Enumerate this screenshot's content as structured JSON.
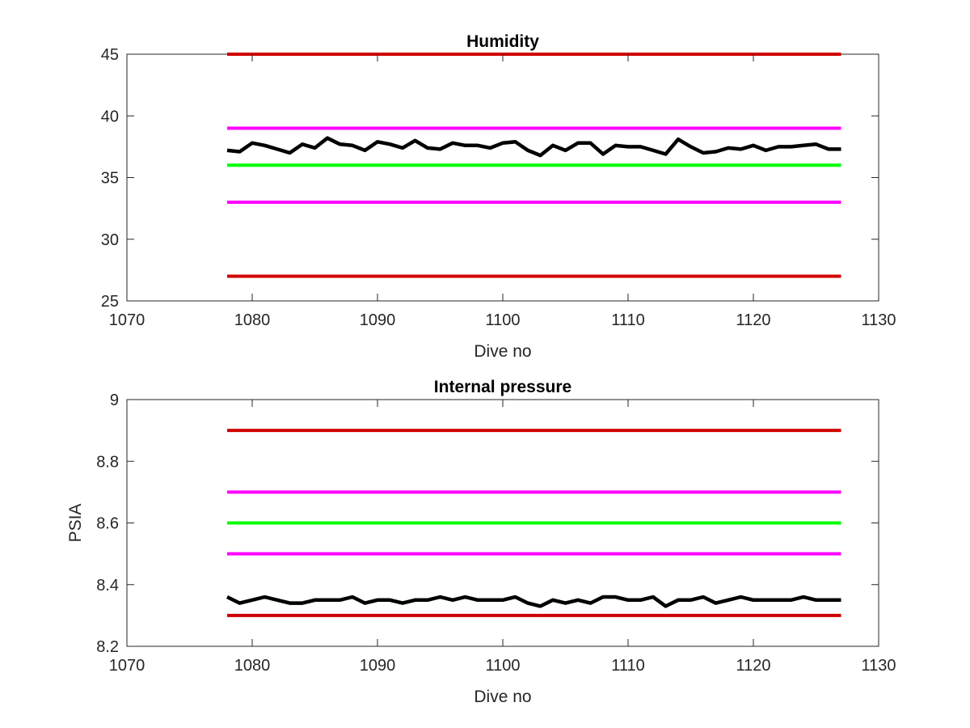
{
  "chart_data": [
    {
      "type": "line",
      "title": "Humidity",
      "xlabel": "Dive no",
      "ylabel": "",
      "xlim": [
        1070,
        1130
      ],
      "ylim": [
        25,
        45
      ],
      "xticks": [
        "1070",
        "1080",
        "1090",
        "1100",
        "1110",
        "1120",
        "1130"
      ],
      "yticks": [
        "25",
        "30",
        "35",
        "40",
        "45"
      ],
      "grid": false,
      "series": [
        {
          "style": "limit",
          "color": "#d00000",
          "x": [
            1078,
            1127
          ],
          "y": [
            45,
            45
          ]
        },
        {
          "style": "limit",
          "color": "#ff00ff",
          "x": [
            1078,
            1127
          ],
          "y": [
            39,
            39
          ]
        },
        {
          "style": "limit",
          "color": "#00ff00",
          "x": [
            1078,
            1127
          ],
          "y": [
            36,
            36
          ]
        },
        {
          "style": "limit",
          "color": "#ff00ff",
          "x": [
            1078,
            1127
          ],
          "y": [
            33,
            33
          ]
        },
        {
          "style": "limit",
          "color": "#d00000",
          "x": [
            1078,
            1127
          ],
          "y": [
            27,
            27
          ]
        },
        {
          "style": "measured",
          "color": "#000000",
          "x": [
            1078,
            1079,
            1080,
            1081,
            1082,
            1083,
            1084,
            1085,
            1086,
            1087,
            1088,
            1089,
            1090,
            1091,
            1092,
            1093,
            1094,
            1095,
            1096,
            1097,
            1098,
            1099,
            1100,
            1101,
            1102,
            1103,
            1104,
            1105,
            1106,
            1107,
            1108,
            1109,
            1110,
            1111,
            1112,
            1113,
            1114,
            1115,
            1116,
            1117,
            1118,
            1119,
            1120,
            1121,
            1122,
            1123,
            1124,
            1125,
            1126,
            1127
          ],
          "y": [
            37.2,
            37.1,
            37.8,
            37.6,
            37.3,
            37.0,
            37.7,
            37.4,
            38.2,
            37.7,
            37.6,
            37.2,
            37.9,
            37.7,
            37.4,
            38.0,
            37.4,
            37.3,
            37.8,
            37.6,
            37.6,
            37.4,
            37.8,
            37.9,
            37.2,
            36.8,
            37.6,
            37.2,
            37.8,
            37.8,
            36.9,
            37.6,
            37.5,
            37.5,
            37.2,
            36.9,
            38.1,
            37.5,
            37.0,
            37.1,
            37.4,
            37.3,
            37.6,
            37.2,
            37.5,
            37.5,
            37.6,
            37.7,
            37.3,
            37.3
          ]
        }
      ]
    },
    {
      "type": "line",
      "title": "Internal pressure",
      "xlabel": "Dive no",
      "ylabel": "PSIA",
      "xlim": [
        1070,
        1130
      ],
      "ylim": [
        8.2,
        9.0
      ],
      "xticks": [
        "1070",
        "1080",
        "1090",
        "1100",
        "1110",
        "1120",
        "1130"
      ],
      "yticks": [
        "8.2",
        "8.4",
        "8.6",
        "8.8",
        "9"
      ],
      "grid": false,
      "series": [
        {
          "style": "limit",
          "color": "#d00000",
          "x": [
            1078,
            1127
          ],
          "y": [
            8.9,
            8.9
          ]
        },
        {
          "style": "limit",
          "color": "#ff00ff",
          "x": [
            1078,
            1127
          ],
          "y": [
            8.7,
            8.7
          ]
        },
        {
          "style": "limit",
          "color": "#00ff00",
          "x": [
            1078,
            1127
          ],
          "y": [
            8.6,
            8.6
          ]
        },
        {
          "style": "limit",
          "color": "#ff00ff",
          "x": [
            1078,
            1127
          ],
          "y": [
            8.5,
            8.5
          ]
        },
        {
          "style": "limit",
          "color": "#d00000",
          "x": [
            1078,
            1127
          ],
          "y": [
            8.3,
            8.3
          ]
        },
        {
          "style": "measured",
          "color": "#000000",
          "x": [
            1078,
            1079,
            1080,
            1081,
            1082,
            1083,
            1084,
            1085,
            1086,
            1087,
            1088,
            1089,
            1090,
            1091,
            1092,
            1093,
            1094,
            1095,
            1096,
            1097,
            1098,
            1099,
            1100,
            1101,
            1102,
            1103,
            1104,
            1105,
            1106,
            1107,
            1108,
            1109,
            1110,
            1111,
            1112,
            1113,
            1114,
            1115,
            1116,
            1117,
            1118,
            1119,
            1120,
            1121,
            1122,
            1123,
            1124,
            1125,
            1126,
            1127
          ],
          "y": [
            8.36,
            8.34,
            8.35,
            8.36,
            8.35,
            8.34,
            8.34,
            8.35,
            8.35,
            8.35,
            8.36,
            8.34,
            8.35,
            8.35,
            8.34,
            8.35,
            8.35,
            8.36,
            8.35,
            8.36,
            8.35,
            8.35,
            8.35,
            8.36,
            8.34,
            8.33,
            8.35,
            8.34,
            8.35,
            8.34,
            8.36,
            8.36,
            8.35,
            8.35,
            8.36,
            8.33,
            8.35,
            8.35,
            8.36,
            8.34,
            8.35,
            8.36,
            8.35,
            8.35,
            8.35,
            8.35,
            8.36,
            8.35,
            8.35,
            8.35
          ]
        }
      ]
    }
  ]
}
